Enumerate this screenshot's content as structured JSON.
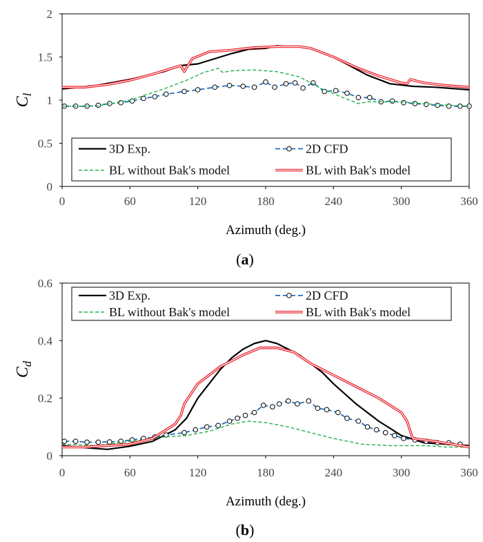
{
  "chart_data": [
    {
      "type": "line",
      "panel": "a",
      "caption_open": "(",
      "caption_letter": "a",
      "caption_close": ")",
      "ylabel_main": "C",
      "ylabel_sub": "l",
      "xlabel": "Azimuth (deg.)",
      "xlim": [
        0,
        360
      ],
      "ylim": [
        0,
        2
      ],
      "xticks": [
        "0",
        "60",
        "120",
        "180",
        "240",
        "300",
        "360"
      ],
      "yticks": [
        "0",
        "0.5",
        "1",
        "1.5",
        "2"
      ],
      "legend_position": "bottom",
      "series": [
        {
          "name": "3D Exp.",
          "color": "#000000",
          "style": "solid-thick",
          "x": [
            0,
            30,
            60,
            90,
            105,
            120,
            135,
            150,
            165,
            180,
            190,
            200,
            210,
            220,
            235,
            250,
            270,
            290,
            310,
            330,
            360
          ],
          "y": [
            1.13,
            1.17,
            1.24,
            1.33,
            1.4,
            1.42,
            1.48,
            1.54,
            1.59,
            1.6,
            1.63,
            1.62,
            1.62,
            1.6,
            1.53,
            1.43,
            1.29,
            1.19,
            1.16,
            1.15,
            1.12
          ]
        },
        {
          "name": "2D CFD",
          "color": "#1f6fbf",
          "style": "dash-circle",
          "x": [
            2,
            12,
            22,
            32,
            42,
            52,
            62,
            72,
            82,
            92,
            108,
            120,
            135,
            148,
            160,
            170,
            180,
            188,
            198,
            206,
            213,
            222,
            232,
            242,
            252,
            262,
            272,
            282,
            292,
            302,
            312,
            322,
            332,
            342,
            352,
            360
          ],
          "y": [
            0.93,
            0.93,
            0.93,
            0.94,
            0.96,
            0.97,
            0.99,
            1.02,
            1.04,
            1.07,
            1.1,
            1.12,
            1.15,
            1.17,
            1.16,
            1.15,
            1.21,
            1.15,
            1.19,
            1.2,
            1.14,
            1.2,
            1.1,
            1.11,
            1.08,
            1.03,
            1.03,
            0.98,
            0.99,
            0.97,
            0.96,
            0.95,
            0.94,
            0.93,
            0.93,
            0.93
          ]
        },
        {
          "name": "BL without Bak's model",
          "color": "#22b04b",
          "style": "dashed",
          "x": [
            0,
            30,
            60,
            90,
            110,
            125,
            138,
            142,
            150,
            170,
            190,
            210,
            230,
            250,
            262,
            270,
            300,
            330,
            360
          ],
          "y": [
            0.93,
            0.93,
            1.0,
            1.13,
            1.23,
            1.32,
            1.37,
            1.32,
            1.34,
            1.35,
            1.33,
            1.27,
            1.13,
            1.02,
            0.96,
            0.98,
            0.98,
            0.95,
            0.93
          ]
        },
        {
          "name": "BL with Bak's model",
          "color": "#e8141e",
          "style": "double",
          "x": [
            0,
            20,
            40,
            60,
            80,
            100,
            105,
            108,
            115,
            130,
            150,
            170,
            190,
            210,
            220,
            240,
            260,
            280,
            300,
            305,
            308,
            320,
            340,
            360
          ],
          "y": [
            1.15,
            1.15,
            1.18,
            1.23,
            1.3,
            1.38,
            1.4,
            1.33,
            1.48,
            1.56,
            1.58,
            1.61,
            1.62,
            1.62,
            1.6,
            1.5,
            1.38,
            1.28,
            1.2,
            1.19,
            1.24,
            1.2,
            1.17,
            1.15
          ]
        }
      ]
    },
    {
      "type": "line",
      "panel": "b",
      "caption_open": "(",
      "caption_letter": "b",
      "caption_close": ")",
      "ylabel_main": "C",
      "ylabel_sub": "d",
      "xlabel": "Azimuth (deg.)",
      "xlim": [
        0,
        360
      ],
      "ylim": [
        0,
        0.6
      ],
      "xticks": [
        "0",
        "60",
        "120",
        "180",
        "240",
        "300",
        "360"
      ],
      "yticks": [
        "0",
        "0.2",
        "0.4",
        "0.6"
      ],
      "legend_position": "top",
      "series": [
        {
          "name": "3D Exp.",
          "color": "#000000",
          "style": "solid-thick",
          "x": [
            0,
            20,
            40,
            60,
            80,
            100,
            110,
            120,
            130,
            140,
            150,
            160,
            170,
            180,
            190,
            200,
            210,
            220,
            230,
            240,
            260,
            280,
            300,
            320,
            340,
            360
          ],
          "y": [
            0.035,
            0.028,
            0.022,
            0.033,
            0.05,
            0.09,
            0.13,
            0.2,
            0.25,
            0.3,
            0.34,
            0.37,
            0.39,
            0.4,
            0.39,
            0.37,
            0.35,
            0.32,
            0.29,
            0.25,
            0.18,
            0.12,
            0.07,
            0.045,
            0.04,
            0.035
          ]
        },
        {
          "name": "2D CFD",
          "color": "#1f6fbf",
          "style": "dash-circle",
          "x": [
            2,
            12,
            22,
            32,
            42,
            52,
            62,
            72,
            82,
            92,
            108,
            118,
            128,
            138,
            148,
            155,
            162,
            170,
            178,
            186,
            192,
            200,
            208,
            218,
            226,
            234,
            244,
            252,
            262,
            270,
            278,
            286,
            294,
            302,
            312,
            322,
            332,
            342,
            352
          ],
          "y": [
            0.05,
            0.05,
            0.047,
            0.047,
            0.048,
            0.05,
            0.055,
            0.06,
            0.065,
            0.072,
            0.08,
            0.09,
            0.1,
            0.105,
            0.12,
            0.13,
            0.14,
            0.15,
            0.175,
            0.17,
            0.18,
            0.19,
            0.18,
            0.19,
            0.165,
            0.16,
            0.15,
            0.13,
            0.12,
            0.1,
            0.09,
            0.08,
            0.07,
            0.06,
            0.055,
            0.05,
            0.045,
            0.045,
            0.04
          ]
        },
        {
          "name": "BL without Bak's model",
          "color": "#22b04b",
          "style": "dashed",
          "x": [
            0,
            30,
            60,
            90,
            110,
            130,
            150,
            165,
            180,
            200,
            220,
            240,
            265,
            290,
            320,
            340,
            360
          ],
          "y": [
            0.04,
            0.035,
            0.05,
            0.065,
            0.07,
            0.085,
            0.11,
            0.12,
            0.115,
            0.1,
            0.08,
            0.06,
            0.04,
            0.035,
            0.035,
            0.03,
            0.03
          ]
        },
        {
          "name": "BL with Bak's model",
          "color": "#e8141e",
          "style": "double",
          "x": [
            0,
            20,
            40,
            60,
            80,
            100,
            105,
            108,
            120,
            140,
            160,
            175,
            190,
            205,
            220,
            240,
            260,
            280,
            300,
            305,
            310,
            330,
            360
          ],
          "y": [
            0.03,
            0.03,
            0.035,
            0.04,
            0.06,
            0.11,
            0.14,
            0.18,
            0.25,
            0.31,
            0.35,
            0.375,
            0.375,
            0.36,
            0.32,
            0.28,
            0.24,
            0.2,
            0.15,
            0.12,
            0.06,
            0.05,
            0.03
          ]
        }
      ]
    }
  ]
}
